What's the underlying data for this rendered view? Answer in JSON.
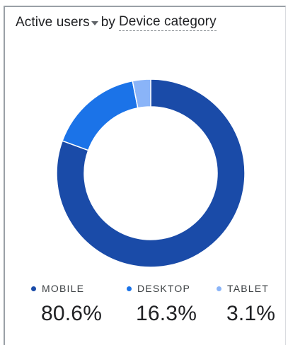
{
  "header": {
    "metric": "Active users",
    "by": "by",
    "dimension": "Device category"
  },
  "chart_data": {
    "type": "pie",
    "donut": true,
    "categories": [
      "MOBILE",
      "DESKTOP",
      "TABLET"
    ],
    "values": [
      80.6,
      16.3,
      3.1
    ],
    "value_labels": [
      "80.6%",
      "16.3%",
      "3.1%"
    ],
    "colors": [
      "#1a4ba8",
      "#1b73e8",
      "#8ab4f8"
    ],
    "legend_position": "bottom"
  }
}
